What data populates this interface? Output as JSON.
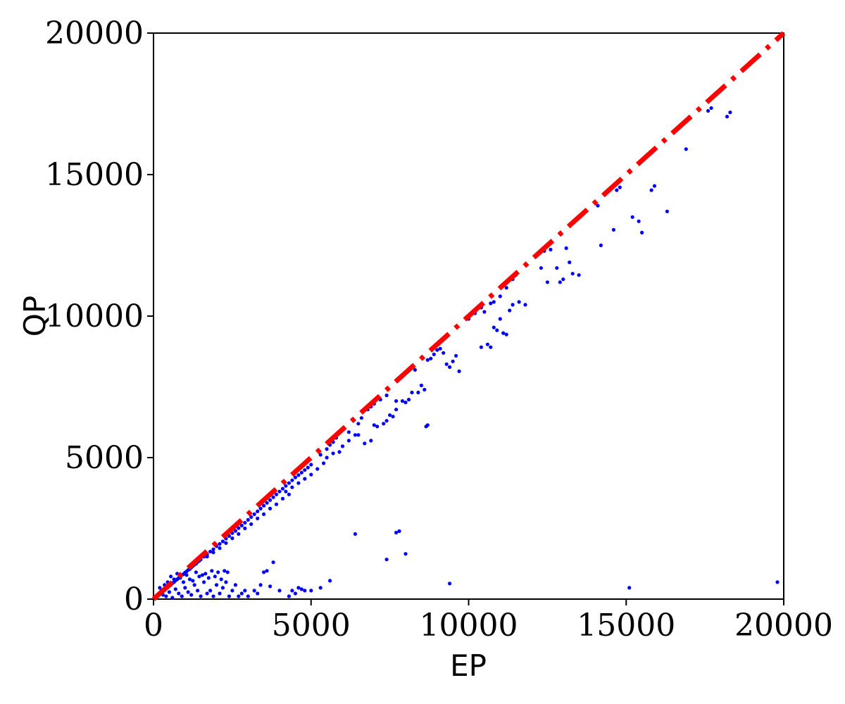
{
  "chart_data": {
    "type": "scatter",
    "title": "",
    "xlabel": "EP",
    "ylabel": "QP",
    "xlim": [
      0,
      20000
    ],
    "ylim": [
      0,
      20000
    ],
    "grid": false,
    "legend": "none",
    "x_ticks": [
      "0",
      "5000",
      "10000",
      "15000",
      "20000"
    ],
    "y_ticks": [
      "0",
      "5000",
      "10000",
      "15000",
      "20000"
    ],
    "reference_line": {
      "kind": "y=x",
      "from": [
        0,
        0
      ],
      "to": [
        20000,
        20000
      ],
      "style": "dash-dot",
      "color": "#ff0000"
    },
    "series": [
      {
        "color": "#0000ff",
        "points": [
          [
            100,
            90
          ],
          [
            150,
            140
          ],
          [
            200,
            180
          ],
          [
            250,
            230
          ],
          [
            300,
            270
          ],
          [
            350,
            320
          ],
          [
            400,
            370
          ],
          [
            450,
            410
          ],
          [
            500,
            460
          ],
          [
            550,
            500
          ],
          [
            600,
            560
          ],
          [
            650,
            600
          ],
          [
            700,
            660
          ],
          [
            750,
            700
          ],
          [
            800,
            750
          ],
          [
            850,
            790
          ],
          [
            900,
            850
          ],
          [
            950,
            880
          ],
          [
            1000,
            940
          ],
          [
            1050,
            980
          ],
          [
            1100,
            1030
          ],
          [
            1150,
            1060
          ],
          [
            1200,
            1120
          ],
          [
            1250,
            1170
          ],
          [
            1300,
            1220
          ],
          [
            1350,
            1250
          ],
          [
            1400,
            1310
          ],
          [
            1450,
            1350
          ],
          [
            1500,
            1400
          ],
          [
            1600,
            1500
          ],
          [
            1700,
            1580
          ],
          [
            1800,
            1680
          ],
          [
            1900,
            1760
          ],
          [
            2000,
            1870
          ],
          [
            2100,
            1950
          ],
          [
            2200,
            2040
          ],
          [
            2300,
            2140
          ],
          [
            2400,
            2230
          ],
          [
            2500,
            2330
          ],
          [
            2600,
            2410
          ],
          [
            2700,
            2510
          ],
          [
            2800,
            2600
          ],
          [
            2900,
            2700
          ],
          [
            3000,
            2800
          ],
          [
            1700,
            1500
          ],
          [
            1900,
            1650
          ],
          [
            2100,
            1800
          ],
          [
            2300,
            1980
          ],
          [
            2500,
            2150
          ],
          [
            2700,
            2300
          ],
          [
            2900,
            2500
          ],
          [
            3100,
            2650
          ],
          [
            3300,
            2850
          ],
          [
            3500,
            3000
          ],
          [
            3700,
            3200
          ],
          [
            3900,
            3350
          ],
          [
            4100,
            3550
          ],
          [
            4300,
            3700
          ],
          [
            3100,
            2900
          ],
          [
            3200,
            3000
          ],
          [
            3300,
            3100
          ],
          [
            3400,
            3200
          ],
          [
            3500,
            3300
          ],
          [
            3600,
            3400
          ],
          [
            3700,
            3500
          ],
          [
            3800,
            3600
          ],
          [
            3900,
            3700
          ],
          [
            4000,
            3800
          ],
          [
            4100,
            3900
          ],
          [
            4200,
            4000
          ],
          [
            4300,
            4100
          ],
          [
            4400,
            4200
          ],
          [
            4500,
            4300
          ],
          [
            4600,
            4380
          ],
          [
            4700,
            4470
          ],
          [
            4800,
            4560
          ],
          [
            4900,
            4650
          ],
          [
            5000,
            4750
          ],
          [
            4200,
            3800
          ],
          [
            4400,
            3950
          ],
          [
            4600,
            4100
          ],
          [
            4800,
            4250
          ],
          [
            5000,
            4400
          ],
          [
            5200,
            4600
          ],
          [
            5400,
            4800
          ],
          [
            5300,
            5100
          ],
          [
            5500,
            5300
          ],
          [
            5600,
            5450
          ],
          [
            5700,
            5550
          ],
          [
            5800,
            5700
          ],
          [
            5500,
            5000
          ],
          [
            5700,
            5150
          ],
          [
            5900,
            5200
          ],
          [
            6000,
            5400
          ],
          [
            6200,
            5600
          ],
          [
            6400,
            5800
          ],
          [
            6500,
            6200
          ],
          [
            6600,
            6400
          ],
          [
            6800,
            6700
          ],
          [
            6900,
            6800
          ],
          [
            7000,
            6900
          ],
          [
            7200,
            7050
          ],
          [
            7400,
            7200
          ],
          [
            6200,
            5900
          ],
          [
            6500,
            5800
          ],
          [
            6700,
            5500
          ],
          [
            6900,
            5600
          ],
          [
            7100,
            6100
          ],
          [
            7300,
            6200
          ],
          [
            7500,
            6500
          ],
          [
            7700,
            6700
          ],
          [
            7900,
            7000
          ],
          [
            8000,
            6950
          ],
          [
            8100,
            7050
          ],
          [
            8200,
            7300
          ],
          [
            8300,
            8100
          ],
          [
            8400,
            7300
          ],
          [
            8500,
            7550
          ],
          [
            8600,
            7400
          ],
          [
            8700,
            8450
          ],
          [
            8800,
            8500
          ],
          [
            8900,
            8650
          ],
          [
            9000,
            8800
          ],
          [
            9100,
            8850
          ],
          [
            9200,
            8700
          ],
          [
            9300,
            8300
          ],
          [
            9400,
            8200
          ],
          [
            9500,
            8400
          ],
          [
            9600,
            8600
          ],
          [
            9700,
            8050
          ],
          [
            8700,
            6150
          ],
          [
            8650,
            6100
          ],
          [
            7700,
            7000
          ],
          [
            7600,
            6450
          ],
          [
            7400,
            6300
          ],
          [
            7000,
            6150
          ],
          [
            10000,
            9900
          ],
          [
            10200,
            10100
          ],
          [
            10400,
            10300
          ],
          [
            10500,
            10150
          ],
          [
            10700,
            10450
          ],
          [
            10800,
            10500
          ],
          [
            11000,
            10700
          ],
          [
            11200,
            11000
          ],
          [
            11400,
            11300
          ],
          [
            11500,
            11450
          ],
          [
            10400,
            8900
          ],
          [
            10600,
            9000
          ],
          [
            10700,
            8900
          ],
          [
            10800,
            9600
          ],
          [
            10900,
            9500
          ],
          [
            11000,
            9900
          ],
          [
            11100,
            9400
          ],
          [
            11200,
            9350
          ],
          [
            11300,
            10200
          ],
          [
            11400,
            10400
          ],
          [
            11600,
            10500
          ],
          [
            11800,
            10400
          ],
          [
            12300,
            11700
          ],
          [
            12400,
            12300
          ],
          [
            12500,
            11200
          ],
          [
            12600,
            12350
          ],
          [
            12800,
            11700
          ],
          [
            12900,
            11200
          ],
          [
            13000,
            11300
          ],
          [
            13100,
            12400
          ],
          [
            13200,
            11900
          ],
          [
            13300,
            11500
          ],
          [
            13500,
            11450
          ],
          [
            14100,
            13900
          ],
          [
            14200,
            12500
          ],
          [
            14600,
            13050
          ],
          [
            14700,
            14450
          ],
          [
            14800,
            14550
          ],
          [
            15200,
            13500
          ],
          [
            15400,
            13350
          ],
          [
            15500,
            12950
          ],
          [
            15800,
            14450
          ],
          [
            15900,
            14600
          ],
          [
            16300,
            13700
          ],
          [
            16900,
            15900
          ],
          [
            17600,
            17250
          ],
          [
            17700,
            17350
          ],
          [
            18200,
            17050
          ],
          [
            18300,
            17200
          ],
          [
            300,
            150
          ],
          [
            400,
            100
          ],
          [
            500,
            250
          ],
          [
            600,
            50
          ],
          [
            700,
            350
          ],
          [
            800,
            200
          ],
          [
            900,
            100
          ],
          [
            1000,
            400
          ],
          [
            1100,
            250
          ],
          [
            1200,
            150
          ],
          [
            1300,
            500
          ],
          [
            1400,
            300
          ],
          [
            1500,
            100
          ],
          [
            1600,
            600
          ],
          [
            1700,
            200
          ],
          [
            1800,
            300
          ],
          [
            1900,
            100
          ],
          [
            2000,
            500
          ],
          [
            2100,
            200
          ],
          [
            2200,
            400
          ],
          [
            2300,
            600
          ],
          [
            2400,
            100
          ],
          [
            2500,
            300
          ],
          [
            2600,
            500
          ],
          [
            2700,
            100
          ],
          [
            2800,
            200
          ],
          [
            2900,
            300
          ],
          [
            3000,
            100
          ],
          [
            3200,
            300
          ],
          [
            3300,
            200
          ],
          [
            3400,
            500
          ],
          [
            3500,
            950
          ],
          [
            3600,
            1000
          ],
          [
            3700,
            450
          ],
          [
            3800,
            1300
          ],
          [
            4000,
            300
          ],
          [
            4300,
            100
          ],
          [
            4400,
            300
          ],
          [
            4500,
            200
          ],
          [
            4600,
            400
          ],
          [
            4700,
            350
          ],
          [
            4800,
            300
          ],
          [
            5000,
            300
          ],
          [
            5300,
            400
          ],
          [
            5600,
            650
          ],
          [
            200,
            400
          ],
          [
            250,
            300
          ],
          [
            350,
            500
          ],
          [
            450,
            600
          ],
          [
            550,
            800
          ],
          [
            650,
            700
          ],
          [
            750,
            900
          ],
          [
            850,
            750
          ],
          [
            950,
            600
          ],
          [
            1050,
            850
          ],
          [
            1150,
            700
          ],
          [
            1250,
            650
          ],
          [
            1350,
            950
          ],
          [
            1450,
            800
          ],
          [
            1550,
            850
          ],
          [
            1650,
            900
          ],
          [
            1750,
            750
          ],
          [
            1850,
            1000
          ],
          [
            1950,
            800
          ],
          [
            2050,
            950
          ],
          [
            2150,
            700
          ],
          [
            2250,
            1000
          ],
          [
            2350,
            950
          ],
          [
            6400,
            2300
          ],
          [
            7400,
            1400
          ],
          [
            7700,
            2350
          ],
          [
            7800,
            2400
          ],
          [
            8000,
            1600
          ],
          [
            9400,
            550
          ],
          [
            15100,
            400
          ],
          [
            19800,
            600
          ]
        ]
      }
    ]
  }
}
